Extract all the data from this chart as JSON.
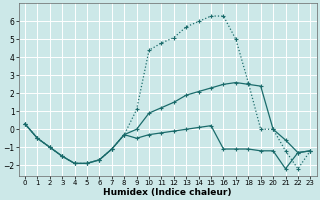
{
  "xlabel": "Humidex (Indice chaleur)",
  "bg_color": "#cce8e8",
  "line_color": "#1a6b6b",
  "grid_color": "#b8d8d8",
  "xlim": [
    -0.5,
    23.5
  ],
  "ylim": [
    -2.6,
    7.0
  ],
  "yticks": [
    -2,
    -1,
    0,
    1,
    2,
    3,
    4,
    5,
    6
  ],
  "xticks": [
    0,
    1,
    2,
    3,
    4,
    5,
    6,
    7,
    8,
    9,
    10,
    11,
    12,
    13,
    14,
    15,
    16,
    17,
    18,
    19,
    20,
    21,
    22,
    23
  ],
  "series1_x": [
    0,
    1,
    2,
    3,
    4,
    5,
    6,
    7,
    8,
    9,
    10,
    11,
    12,
    13,
    14,
    15,
    16,
    17,
    18,
    19,
    20,
    21,
    22,
    23
  ],
  "series1_y": [
    0.3,
    -0.5,
    -1.0,
    -1.5,
    -1.9,
    -1.9,
    -1.7,
    -1.1,
    -0.3,
    1.1,
    4.4,
    4.8,
    5.1,
    5.7,
    6.0,
    6.3,
    6.3,
    5.0,
    2.6,
    0.0,
    0.0,
    -1.2,
    -2.2,
    -1.2
  ],
  "series2_x": [
    0,
    1,
    2,
    3,
    4,
    5,
    6,
    7,
    8,
    9,
    10,
    11,
    12,
    13,
    14,
    15,
    16,
    17,
    18,
    19,
    20,
    21,
    22,
    23
  ],
  "series2_y": [
    0.3,
    -0.5,
    -1.0,
    -1.5,
    -1.9,
    -1.9,
    -1.7,
    -1.1,
    -0.3,
    0.0,
    0.9,
    1.2,
    1.5,
    1.9,
    2.1,
    2.3,
    2.5,
    2.6,
    2.5,
    2.4,
    0.0,
    -0.6,
    -1.3,
    -1.2
  ],
  "series3_x": [
    0,
    1,
    2,
    3,
    4,
    5,
    6,
    7,
    8,
    9,
    10,
    11,
    12,
    13,
    14,
    15,
    16,
    17,
    18,
    19,
    20,
    21,
    22,
    23
  ],
  "series3_y": [
    0.3,
    -0.5,
    -1.0,
    -1.5,
    -1.9,
    -1.9,
    -1.7,
    -1.1,
    -0.3,
    -0.5,
    -0.3,
    -0.2,
    -0.1,
    0.0,
    0.1,
    0.2,
    -1.1,
    -1.1,
    -1.1,
    -1.2,
    -1.2,
    -2.2,
    -1.3,
    -1.2
  ]
}
